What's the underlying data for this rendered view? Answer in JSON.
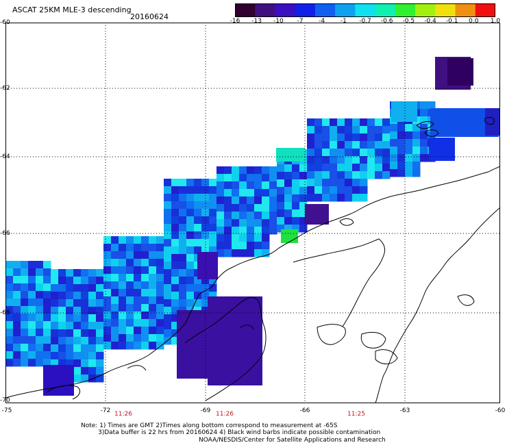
{
  "header": {
    "title": "ASCAT 25KM MLE-3 descending",
    "date": "20160624"
  },
  "colorbar": {
    "labels": [
      "-16",
      "-13",
      "-10",
      "-7",
      "-4",
      "-1",
      "-0.7",
      "-0.6",
      "-0.5",
      "-0.4",
      "-0.1",
      "0.0",
      "1.0"
    ],
    "colors": [
      "#300030",
      "#401080",
      "#3a10c0",
      "#1020e8",
      "#1060f0",
      "#10a0f0",
      "#10e0f0",
      "#10f0b0",
      "#30f030",
      "#a0f010",
      "#f0e010",
      "#f09010",
      "#f01010"
    ]
  },
  "axes": {
    "lon_labels": [
      "-75",
      "-72",
      "-69",
      "-66",
      "-63",
      "-60"
    ],
    "lat_labels": [
      "-60",
      "-62",
      "-64",
      "-66",
      "-68",
      "-70"
    ]
  },
  "times": [
    "11:26",
    "11:26",
    "11:25"
  ],
  "footer": {
    "note_line1": "Note: 1) Times are GMT 2)Times along bottom correspond to measurement at -65S",
    "note_line2": "3)Data buffer is 22 hrs from 20160624 4) Black wind barbs indicate possible contamination",
    "credit": "NOAA/NESDIS/Center for Satellite Applications and Research"
  }
}
